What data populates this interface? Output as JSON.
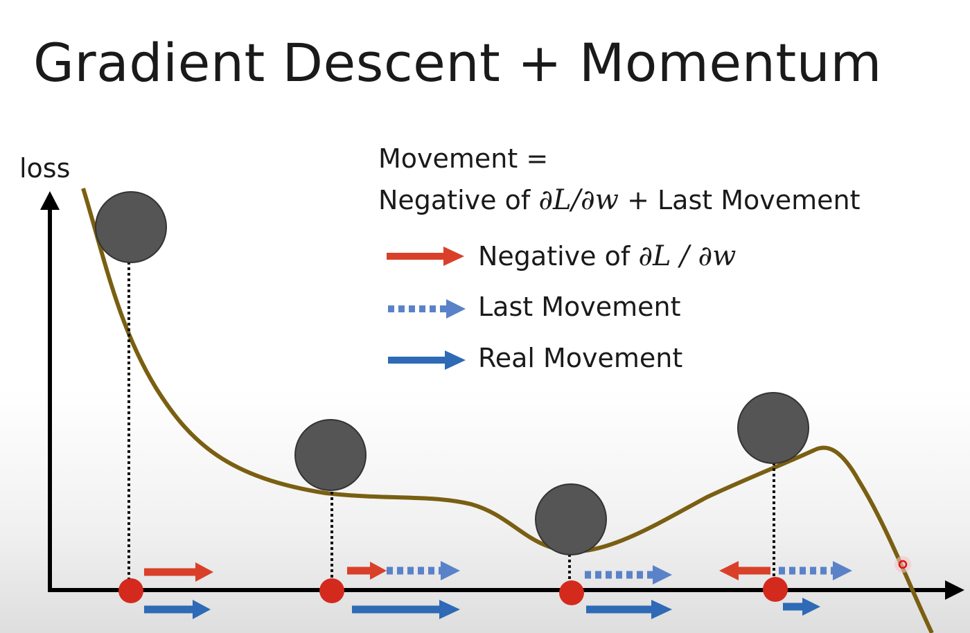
{
  "title": "Gradient Descent + Momentum",
  "axis": {
    "y_label": "loss"
  },
  "formula": {
    "line1": "Movement =",
    "line2_prefix": "Negative of ",
    "line2_math": "∂L/∂w",
    "line2_suffix": " + Last Movement"
  },
  "legend": [
    {
      "label_text": "Negative of ",
      "label_math": "∂L / ∂w",
      "style": "solid",
      "color": "#d9402a"
    },
    {
      "label_text": "Last Movement",
      "label_math": "",
      "style": "dotted",
      "color": "#5a82c8"
    },
    {
      "label_text": "Real Movement",
      "label_math": "",
      "style": "solid",
      "color": "#2e6ab5"
    }
  ],
  "colors": {
    "curve": "#7a5f12",
    "ball": "#555555",
    "point": "#d42a1e",
    "gradient_arrow": "#d9402a",
    "last_movement_arrow": "#5a82c8",
    "real_movement_arrow": "#2e6ab5",
    "axis": "#000000"
  },
  "icons": [
    "y-axis-arrowhead-icon",
    "x-axis-arrowhead-icon",
    "cursor-marker-icon"
  ]
}
